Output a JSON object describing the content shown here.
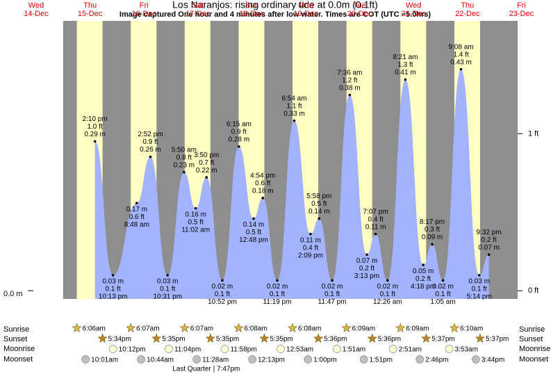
{
  "chart_data": {
    "type": "tide",
    "title": "Los Naranjos: rising  ordinary tide at 0.0m (0.1ft)",
    "subtitle": "Image captured One hour and 4 minutes after low water. Times are COT (UTC −5.0hrs)",
    "ylim": [
      -0.016,
      0.524
    ],
    "yticks": [
      {
        "value": 0,
        "label": "0.0 m"
      }
    ],
    "y2lim": [
      -0.052,
      1.719
    ],
    "y2ticks": [
      {
        "value": 0,
        "label": "0 ft"
      },
      {
        "value": 1,
        "label": "1 ft"
      }
    ],
    "colors": {
      "night": "#8e8e8e",
      "day": "#ffffc4",
      "tide": "#a3b3ff",
      "header": "#e00000"
    },
    "row_labels": {
      "sunrise": "Sunrise",
      "sunset": "Sunset",
      "moonrise": "Moonrise",
      "moonset": "Moonset"
    },
    "days": [
      {
        "weekday": "Wed",
        "date": "14-Dec"
      },
      {
        "weekday": "Thu",
        "date": "15-Dec",
        "sunrise": "6:06am",
        "sunset": "5:34pm",
        "moonrise": "10:12pm",
        "moonset": "10:01am",
        "tides": [
          {
            "time": "2:10 pm",
            "ft": "1.0 ft",
            "m": 0.29,
            "m_label": "0.29 m"
          },
          {
            "time": "10:13 pm",
            "ft": "0.1 ft",
            "m": 0.03,
            "m_label": "0.03 m"
          }
        ]
      },
      {
        "weekday": "Fri",
        "date": "16-Dec",
        "sunrise": "6:07am",
        "sunset": "5:35pm",
        "moonrise": "11:04pm",
        "moonset": "10:44am",
        "tides": [
          {
            "time": "8:48 am",
            "ft": "0.6 ft",
            "m": 0.17,
            "m_label": "0.17 m"
          },
          {
            "time": "2:52 pm",
            "ft": "0.9 ft",
            "m": 0.26,
            "m_label": "0.26 m"
          },
          {
            "time": "10:31 pm",
            "ft": "0.1 ft",
            "m": 0.03,
            "m_label": "0.03 m"
          }
        ]
      },
      {
        "weekday": "Sat",
        "date": "17-Dec",
        "sunrise": "6:07am",
        "sunset": "5:35pm",
        "moonrise": "11:58pm",
        "moonset": "11:28am",
        "moon_phase": "Last Quarter | 7:47pm",
        "tides": [
          {
            "time": "5:50 am",
            "ft": "0.8 ft",
            "m": 0.23,
            "m_label": "0.23 m"
          },
          {
            "time": "11:02 am",
            "ft": "0.5 ft",
            "m": 0.16,
            "m_label": "0.16 m"
          },
          {
            "time": "3:50 pm",
            "ft": "0.7 ft",
            "m": 0.22,
            "m_label": "0.22 m"
          },
          {
            "time": "10:52 pm",
            "ft": "0.1 ft",
            "m": 0.02,
            "m_label": "0.02 m"
          }
        ]
      },
      {
        "weekday": "Sun",
        "date": "18-Dec",
        "sunrise": "6:08am",
        "sunset": "5:35pm",
        "moonset": "12:13pm",
        "tides": [
          {
            "time": "6:15 am",
            "ft": "0.9 ft",
            "m": 0.28,
            "m_label": "0.28 m"
          },
          {
            "time": "12:48 pm",
            "ft": "0.5 ft",
            "m": 0.14,
            "m_label": "0.14 m"
          },
          {
            "time": "4:54 pm",
            "ft": "0.6 ft",
            "m": 0.18,
            "m_label": "0.18 m"
          },
          {
            "time": "11:19 pm",
            "ft": "0.1 ft",
            "m": 0.02,
            "m_label": "0.02 m"
          }
        ]
      },
      {
        "weekday": "Mon",
        "date": "19-Dec",
        "sunrise": "6:08am",
        "sunset": "5:36pm",
        "moonrise": "12:53am",
        "moonset": "1:00pm",
        "tides": [
          {
            "time": "6:54 am",
            "ft": "1.1 ft",
            "m": 0.33,
            "m_label": "0.33 m"
          },
          {
            "time": "2:09 pm",
            "ft": "0.4 ft",
            "m": 0.11,
            "m_label": "0.11 m"
          },
          {
            "time": "5:58 pm",
            "ft": "0.5 ft",
            "m": 0.14,
            "m_label": "0.14 m"
          },
          {
            "time": "11:47 pm",
            "ft": "0.1 ft",
            "m": 0.02,
            "m_label": "0.02 m"
          }
        ]
      },
      {
        "weekday": "Tue",
        "date": "20-Dec",
        "sunrise": "6:09am",
        "sunset": "5:36pm",
        "moonrise": "1:51am",
        "moonset": "1:51pm",
        "tides": [
          {
            "time": "7:36 am",
            "ft": "1.2 ft",
            "m": 0.38,
            "m_label": "0.38 m"
          },
          {
            "time": "3:13 pm",
            "ft": "0.2 ft",
            "m": 0.07,
            "m_label": "0.07 m"
          },
          {
            "time": "7:07 pm",
            "ft": "0.4 ft",
            "m": 0.11,
            "m_label": "0.11 m"
          }
        ]
      },
      {
        "weekday": "Wed",
        "date": "21-Dec",
        "sunrise": "6:09am",
        "sunset": "5:37pm",
        "moonrise": "2:51am",
        "moonset": "2:46pm",
        "tides": [
          {
            "time": "12:26 am",
            "ft": "0.1 ft",
            "m": 0.02,
            "m_label": "0.02 m"
          },
          {
            "time": "8:21 am",
            "ft": "1.3 ft",
            "m": 0.41,
            "m_label": "0.41 m"
          },
          {
            "time": "4:18 pm",
            "ft": "0.2 ft",
            "m": 0.05,
            "m_label": "0.05 m"
          },
          {
            "time": "8:17 pm",
            "ft": "0.3 ft",
            "m": 0.09,
            "m_label": "0.09 m"
          }
        ]
      },
      {
        "weekday": "Thu",
        "date": "22-Dec",
        "sunrise": "6:10am",
        "sunset": "5:37pm",
        "moonrise": "3:53am",
        "moonset": "3:44pm",
        "tides": [
          {
            "time": "1:05 am",
            "ft": "0.1 ft",
            "m": 0.02,
            "m_label": "0.02 m"
          },
          {
            "time": "9:08 am",
            "ft": "1.4 ft",
            "m": 0.43,
            "m_label": "0.43 m"
          },
          {
            "time": "5:14 pm",
            "ft": "0.1 ft",
            "m": 0.03,
            "m_label": "0.03 m"
          },
          {
            "time": "9:32 pm",
            "ft": "0.2 ft",
            "m": 0.07,
            "m_label": "0.07 m"
          }
        ]
      },
      {
        "weekday": "Fri",
        "date": "23-Dec"
      }
    ]
  }
}
